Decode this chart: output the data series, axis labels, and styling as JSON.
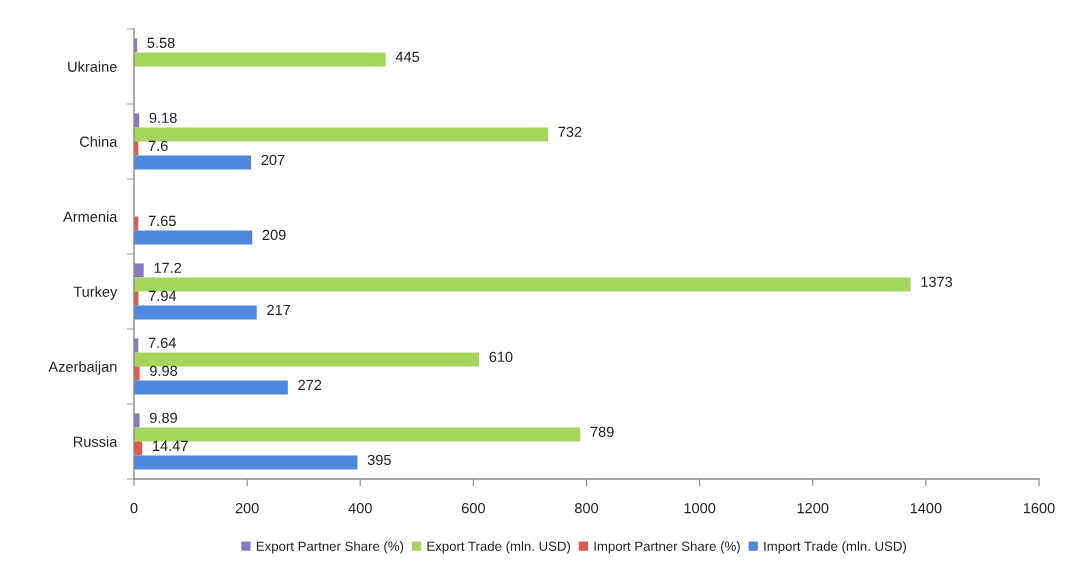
{
  "chart_data": {
    "type": "bar",
    "orientation": "horizontal",
    "categories": [
      "Ukraine",
      "China",
      "Armenia",
      "Turkey",
      "Azerbaijan",
      "Russia"
    ],
    "series": [
      {
        "name": "Export Partner Share (%)",
        "color": "#8b78c2",
        "values": [
          5.58,
          9.18,
          null,
          17.2,
          7.64,
          9.89
        ]
      },
      {
        "name": "Export Trade (mln. USD)",
        "color": "#a5d65c",
        "values": [
          445,
          732,
          null,
          1373,
          610,
          789
        ]
      },
      {
        "name": "Import Partner Share (%)",
        "color": "#dc5a4e",
        "values": [
          null,
          7.6,
          7.65,
          7.94,
          9.98,
          14.47
        ]
      },
      {
        "name": "Import Trade (mln. USD)",
        "color": "#4d88dd",
        "values": [
          null,
          207,
          209,
          217,
          272,
          395
        ]
      }
    ],
    "xlim": [
      0,
      1600
    ],
    "xticks": [
      0,
      200,
      400,
      600,
      800,
      1000,
      1200,
      1400,
      1600
    ],
    "data_labels": true,
    "legend": "bottom",
    "grid": false
  }
}
